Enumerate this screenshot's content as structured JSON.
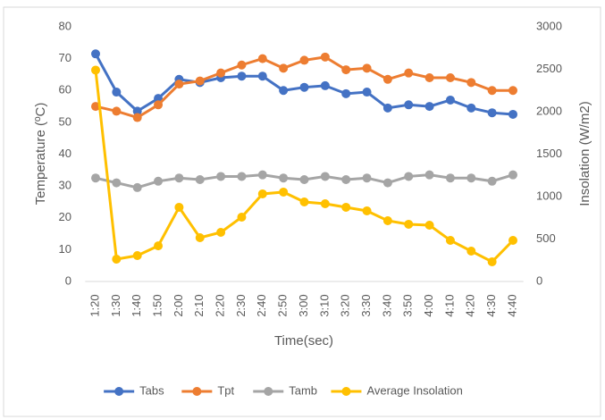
{
  "chart_data": {
    "type": "line",
    "x_label": "Time(sec)",
    "y_label": "Temperature (ºC)",
    "y2_label": "Insolation (W/m2)",
    "categories": [
      "1:20",
      "1:30",
      "1:40",
      "1:50",
      "2:00",
      "2:10",
      "2:20",
      "2:30",
      "2:40",
      "2:50",
      "3:00",
      "3:10",
      "3:20",
      "3:30",
      "3:40",
      "3:50",
      "4:00",
      "4:10",
      "4:20",
      "4:30",
      "4:40"
    ],
    "series": [
      {
        "name": "Tabs",
        "color": "#4472c4",
        "values": [
          71.5,
          59.5,
          53.5,
          57.5,
          63.5,
          62.5,
          64,
          64.5,
          64.5,
          60,
          61,
          61.5,
          59,
          59.5,
          54.5,
          55.5,
          55,
          57,
          54.5,
          53,
          52.5
        ]
      },
      {
        "name": "Tpt",
        "color": "#ed7d31",
        "values": [
          55,
          53.5,
          51.5,
          55.5,
          62,
          63,
          65.5,
          68,
          70,
          67,
          69.5,
          70.5,
          66.5,
          67,
          63.5,
          65.5,
          64,
          64,
          62.5,
          60,
          60
        ]
      },
      {
        "name": "Tamb",
        "color": "#a5a5a5",
        "values": [
          32.5,
          31,
          29.5,
          31.5,
          32.5,
          32,
          33,
          33,
          33.5,
          32.5,
          32,
          33,
          32,
          32.5,
          31,
          33,
          33.5,
          32.5,
          32.5,
          31.5,
          33.5
        ]
      },
      {
        "name": "Average Insolation",
        "color": "#ffc000",
        "axis": "y2",
        "values": [
          2490,
          263,
          305,
          420,
          874,
          516,
          579,
          758,
          1032,
          1053,
          937,
          916,
          874,
          832,
          716,
          674,
          663,
          484,
          358,
          232,
          484
        ]
      }
    ],
    "ylim": [
      0,
      80
    ],
    "yticks": [
      0,
      10,
      20,
      30,
      40,
      50,
      60,
      70,
      80
    ],
    "y2lim": [
      0,
      3000
    ],
    "y2ticks": [
      0,
      500,
      1000,
      1500,
      2000,
      2500,
      3000
    ],
    "legend": "bottom"
  }
}
